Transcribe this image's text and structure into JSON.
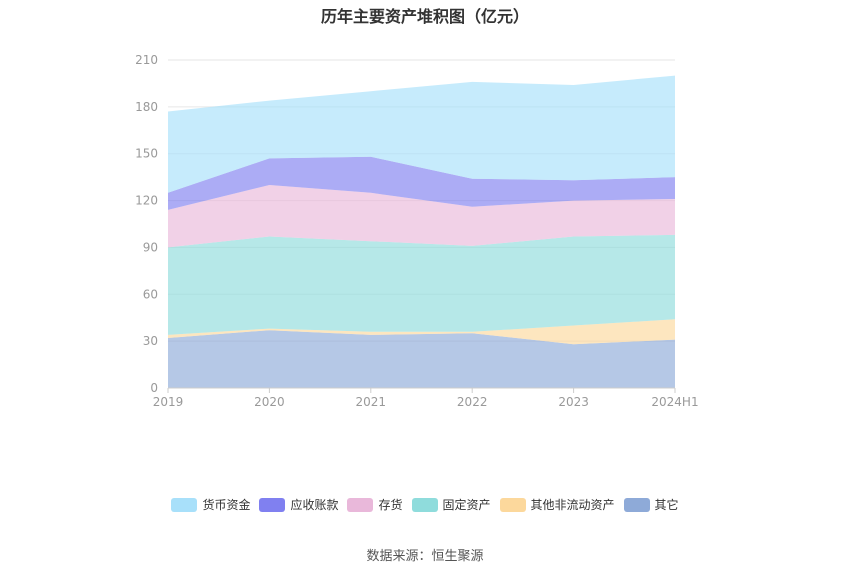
{
  "chart_data": {
    "type": "area",
    "stacked": true,
    "title": "历年主要资产堆积图（亿元）",
    "categories": [
      "2019",
      "2020",
      "2021",
      "2022",
      "2023",
      "2024H1"
    ],
    "y_ticks": [
      "0",
      "30",
      "60",
      "90",
      "120",
      "150",
      "180",
      "210"
    ],
    "ylim": [
      0,
      210
    ],
    "grid": true,
    "legend_position": "bottom",
    "series": [
      {
        "name": "其它",
        "color": "#8eaad8",
        "values": [
          32,
          37,
          34,
          35,
          28,
          31
        ]
      },
      {
        "name": "其他非流动资产",
        "color": "#fcd89c",
        "values": [
          2,
          1,
          2,
          1,
          12,
          13
        ]
      },
      {
        "name": "固定资产",
        "color": "#8fdcdc",
        "values": [
          56,
          59,
          58,
          55,
          57,
          54
        ]
      },
      {
        "name": "存货",
        "color": "#e9b8da",
        "values": [
          24,
          33,
          31,
          25,
          23,
          23
        ]
      },
      {
        "name": "应收账款",
        "color": "#8080f0",
        "values": [
          11,
          17,
          23,
          18,
          13,
          14
        ]
      },
      {
        "name": "货币资金",
        "color": "#a8e0fa",
        "values": [
          52,
          37,
          42,
          62,
          61,
          65
        ]
      }
    ],
    "source": "数据来源：恒生聚源"
  }
}
